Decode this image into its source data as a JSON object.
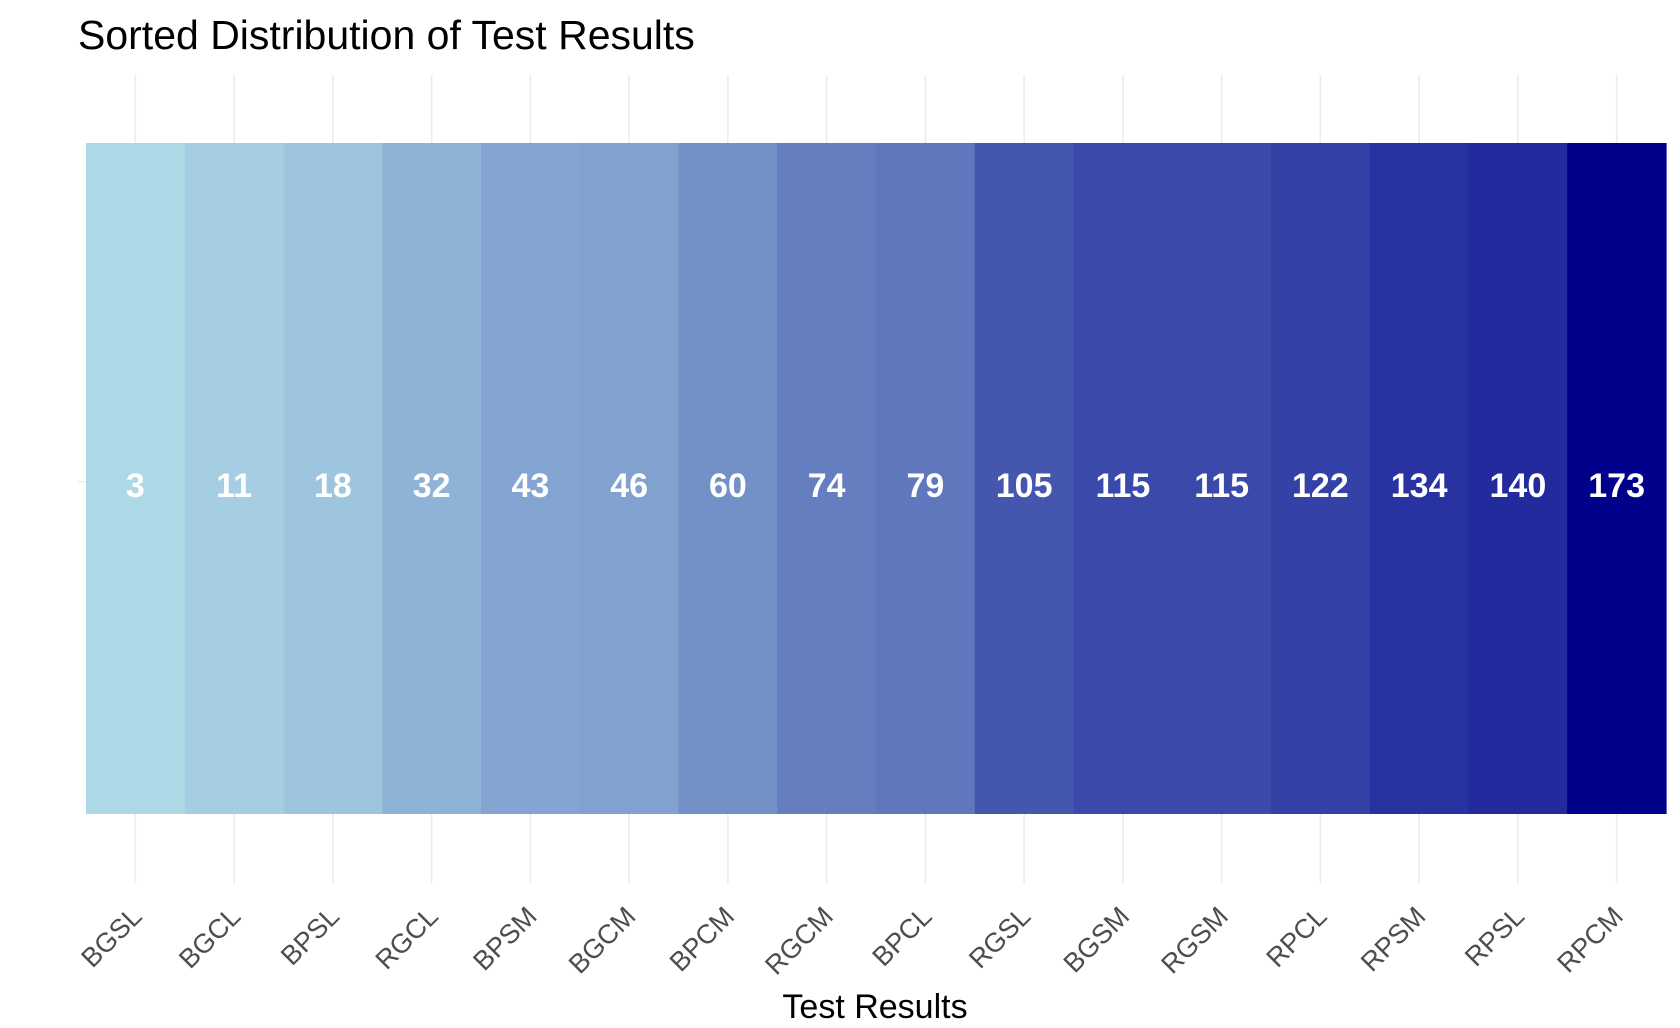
{
  "chart_data": {
    "type": "heatmap",
    "title": "Sorted Distribution of Test Results",
    "xlabel": "Test Results",
    "ylabel": "",
    "categories": [
      "BGSL",
      "BGCL",
      "BPSL",
      "RGCL",
      "BPSM",
      "BGCM",
      "BPCM",
      "RGCM",
      "BPCL",
      "RGSL",
      "BGSM",
      "RGSM",
      "RPCL",
      "RPSM",
      "RPSL",
      "RPCM"
    ],
    "values": [
      3,
      11,
      18,
      32,
      43,
      46,
      60,
      74,
      79,
      105,
      115,
      115,
      122,
      134,
      140,
      173
    ],
    "color_scale": {
      "low": "#add8e6",
      "high": "#00008b"
    },
    "grid": true,
    "legend": "none"
  }
}
